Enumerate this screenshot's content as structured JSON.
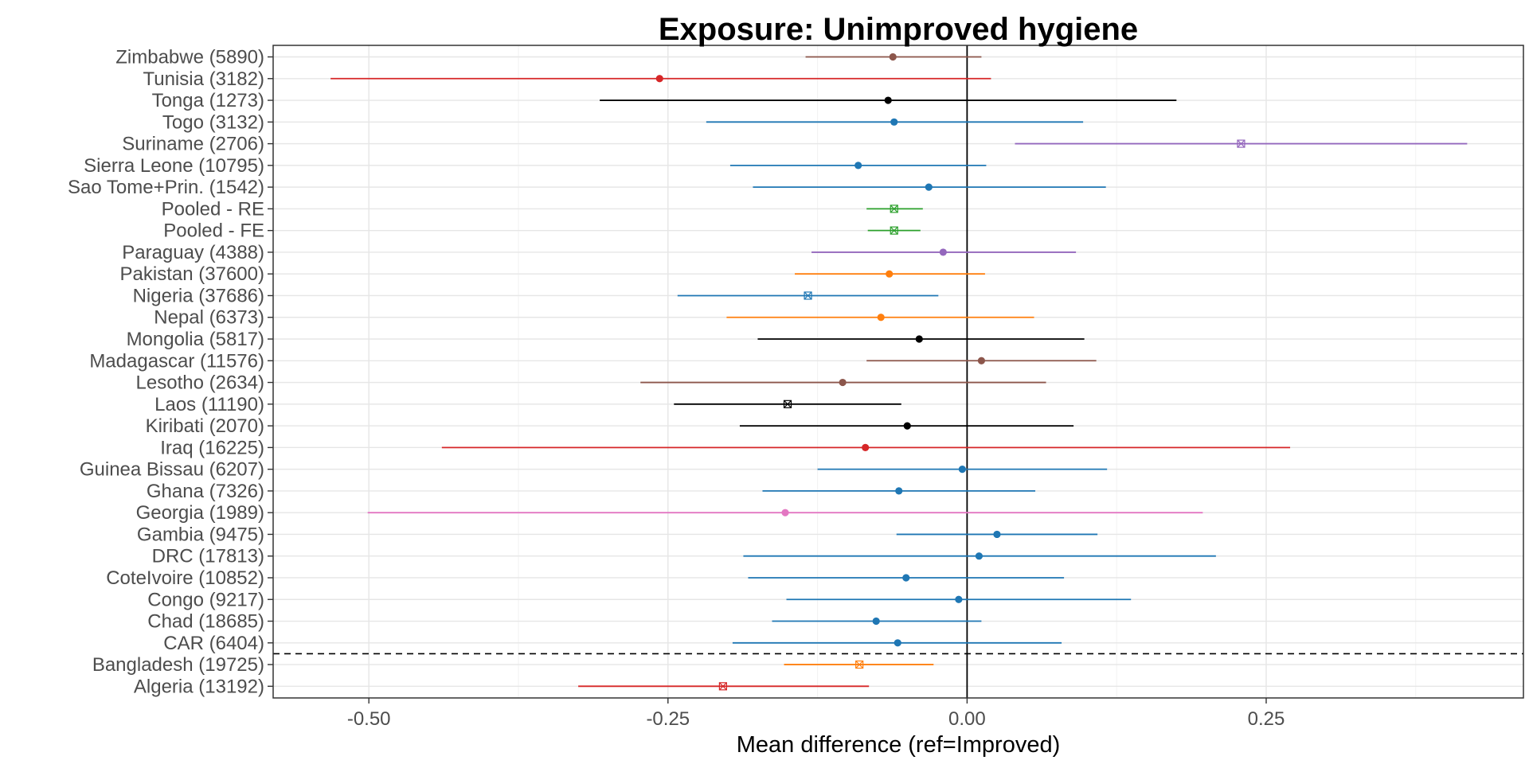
{
  "chart_data": {
    "type": "forest",
    "title": "Exposure: Unimproved hygiene",
    "xlabel": "Mean difference (ref=Improved)",
    "ylabel": "",
    "xlim": [
      -0.58,
      0.465
    ],
    "x_ticks": [
      -0.5,
      -0.25,
      0.0,
      0.25
    ],
    "x_tick_labels": [
      "-0.50",
      "-0.25",
      "0.00",
      "0.25"
    ],
    "reference_line_x": 0,
    "grid": true,
    "separator_after_row": "CAR (6404)",
    "rows": [
      {
        "label": "Zimbabwe (5890)",
        "estimate": -0.062,
        "lower": -0.135,
        "upper": 0.012,
        "color": "#8c564b",
        "marker": "dot"
      },
      {
        "label": "Tunisia (3182)",
        "estimate": -0.257,
        "lower": -0.532,
        "upper": 0.02,
        "color": "#d62728",
        "marker": "dot"
      },
      {
        "label": "Tonga (1273)",
        "estimate": -0.066,
        "lower": -0.307,
        "upper": 0.175,
        "color": "#000000",
        "marker": "dot"
      },
      {
        "label": "Togo (3132)",
        "estimate": -0.061,
        "lower": -0.218,
        "upper": 0.097,
        "color": "#1f77b4",
        "marker": "dot"
      },
      {
        "label": "Suriname (2706)",
        "estimate": 0.229,
        "lower": 0.04,
        "upper": 0.418,
        "color": "#9467bd",
        "marker": "cross"
      },
      {
        "label": "Sierra Leone (10795)",
        "estimate": -0.091,
        "lower": -0.198,
        "upper": 0.016,
        "color": "#1f77b4",
        "marker": "dot"
      },
      {
        "label": "Sao Tome+Prin. (1542)",
        "estimate": -0.032,
        "lower": -0.179,
        "upper": 0.116,
        "color": "#1f77b4",
        "marker": "dot"
      },
      {
        "label": "Pooled - RE",
        "estimate": -0.061,
        "lower": -0.084,
        "upper": -0.037,
        "color": "#2ca02c",
        "marker": "cross"
      },
      {
        "label": "Pooled - FE",
        "estimate": -0.061,
        "lower": -0.083,
        "upper": -0.039,
        "color": "#2ca02c",
        "marker": "cross"
      },
      {
        "label": "Paraguay (4388)",
        "estimate": -0.02,
        "lower": -0.13,
        "upper": 0.091,
        "color": "#9467bd",
        "marker": "dot"
      },
      {
        "label": "Pakistan (37600)",
        "estimate": -0.065,
        "lower": -0.144,
        "upper": 0.015,
        "color": "#ff7f0e",
        "marker": "dot"
      },
      {
        "label": "Nigeria (37686)",
        "estimate": -0.133,
        "lower": -0.242,
        "upper": -0.024,
        "color": "#1f77b4",
        "marker": "cross"
      },
      {
        "label": "Nepal (6373)",
        "estimate": -0.072,
        "lower": -0.201,
        "upper": 0.056,
        "color": "#ff7f0e",
        "marker": "dot"
      },
      {
        "label": "Mongolia (5817)",
        "estimate": -0.04,
        "lower": -0.175,
        "upper": 0.098,
        "color": "#000000",
        "marker": "dot"
      },
      {
        "label": "Madagascar (11576)",
        "estimate": 0.012,
        "lower": -0.084,
        "upper": 0.108,
        "color": "#8c564b",
        "marker": "dot"
      },
      {
        "label": "Lesotho (2634)",
        "estimate": -0.104,
        "lower": -0.273,
        "upper": 0.066,
        "color": "#8c564b",
        "marker": "dot"
      },
      {
        "label": "Laos (11190)",
        "estimate": -0.15,
        "lower": -0.245,
        "upper": -0.055,
        "color": "#000000",
        "marker": "cross"
      },
      {
        "label": "Kiribati (2070)",
        "estimate": -0.05,
        "lower": -0.19,
        "upper": 0.089,
        "color": "#000000",
        "marker": "dot"
      },
      {
        "label": "Iraq (16225)",
        "estimate": -0.085,
        "lower": -0.439,
        "upper": 0.27,
        "color": "#d62728",
        "marker": "dot"
      },
      {
        "label": "Guinea Bissau (6207)",
        "estimate": -0.004,
        "lower": -0.125,
        "upper": 0.117,
        "color": "#1f77b4",
        "marker": "dot"
      },
      {
        "label": "Ghana (7326)",
        "estimate": -0.057,
        "lower": -0.171,
        "upper": 0.057,
        "color": "#1f77b4",
        "marker": "dot"
      },
      {
        "label": "Georgia (1989)",
        "estimate": -0.152,
        "lower": -0.501,
        "upper": 0.197,
        "color": "#e377c2",
        "marker": "dot"
      },
      {
        "label": "Gambia (9475)",
        "estimate": 0.025,
        "lower": -0.059,
        "upper": 0.109,
        "color": "#1f77b4",
        "marker": "dot"
      },
      {
        "label": "DRC (17813)",
        "estimate": 0.01,
        "lower": -0.187,
        "upper": 0.208,
        "color": "#1f77b4",
        "marker": "dot"
      },
      {
        "label": "CoteIvoire (10852)",
        "estimate": -0.051,
        "lower": -0.183,
        "upper": 0.081,
        "color": "#1f77b4",
        "marker": "dot"
      },
      {
        "label": "Congo (9217)",
        "estimate": -0.007,
        "lower": -0.151,
        "upper": 0.137,
        "color": "#1f77b4",
        "marker": "dot"
      },
      {
        "label": "Chad (18685)",
        "estimate": -0.076,
        "lower": -0.163,
        "upper": 0.012,
        "color": "#1f77b4",
        "marker": "dot"
      },
      {
        "label": "CAR (6404)",
        "estimate": -0.058,
        "lower": -0.196,
        "upper": 0.079,
        "color": "#1f77b4",
        "marker": "dot"
      },
      {
        "label": "Bangladesh (19725)",
        "estimate": -0.09,
        "lower": -0.153,
        "upper": -0.028,
        "color": "#ff7f0e",
        "marker": "cross"
      },
      {
        "label": "Algeria (13192)",
        "estimate": -0.204,
        "lower": -0.325,
        "upper": -0.082,
        "color": "#d62728",
        "marker": "cross"
      }
    ]
  }
}
